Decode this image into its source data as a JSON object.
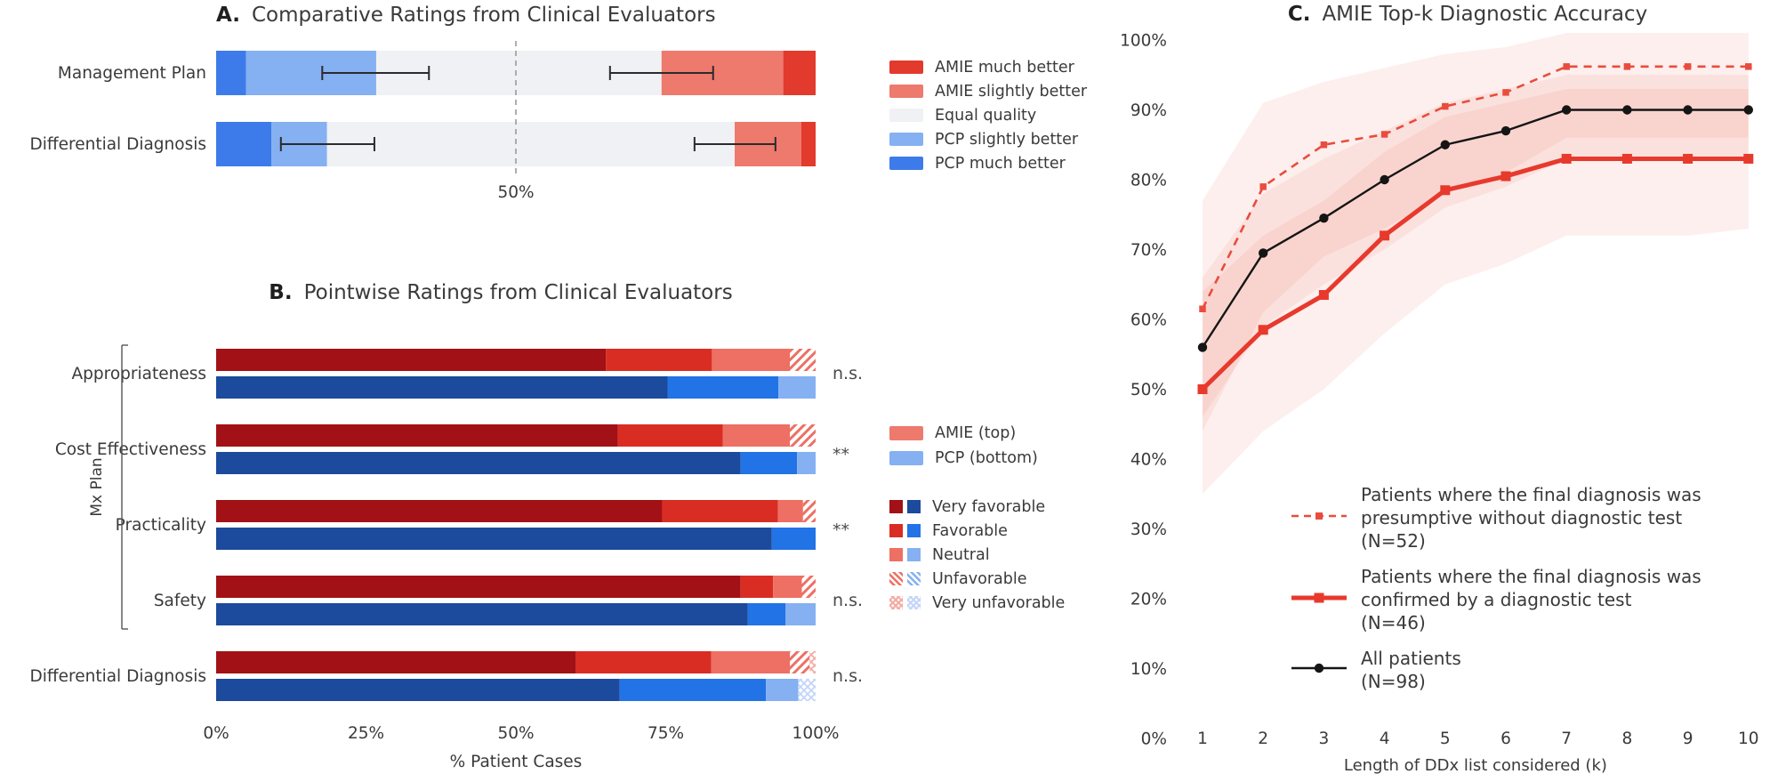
{
  "chart_data": [
    {
      "id": "panel_a",
      "type": "bar",
      "orientation": "horizontal",
      "stacked": true,
      "panel_label": "A.",
      "title": "Comparative Ratings from Clinical Evaluators",
      "reference_line": {
        "value": 50,
        "label": "50%"
      },
      "xlim": [
        0,
        100
      ],
      "categories": [
        "Management Plan",
        "Differential Diagnosis"
      ],
      "series": [
        {
          "name": "PCP much better",
          "color": "#3d7bea",
          "values": [
            5.0,
            9.2
          ]
        },
        {
          "name": "PCP slightly better",
          "color": "#85b0f1",
          "values": [
            21.7,
            9.3
          ]
        },
        {
          "name": "Equal quality",
          "color": "#f0f1f4",
          "values": [
            47.6,
            68.0
          ]
        },
        {
          "name": "AMIE slightly better",
          "color": "#ee796d",
          "values": [
            20.3,
            11.1
          ]
        },
        {
          "name": "AMIE much better",
          "color": "#e23a2c",
          "values": [
            5.4,
            2.4
          ]
        }
      ],
      "error_bars": {
        "left": [
          [
            17.7,
            35.5
          ],
          [
            10.8,
            26.4
          ]
        ],
        "right": [
          [
            65.7,
            82.9
          ],
          [
            79.8,
            93.3
          ]
        ]
      },
      "legend": [
        {
          "label": "AMIE much better",
          "color": "#e23a2c"
        },
        {
          "label": "AMIE slightly better",
          "color": "#ee796d"
        },
        {
          "label": "Equal quality",
          "color": "#f0f1f4"
        },
        {
          "label": "PCP slightly better",
          "color": "#85b0f1"
        },
        {
          "label": "PCP much better",
          "color": "#3d7bea"
        }
      ]
    },
    {
      "id": "panel_b",
      "type": "bar",
      "orientation": "horizontal",
      "stacked": true,
      "panel_label": "B.",
      "title": "Pointwise Ratings from Clinical Evaluators",
      "xlabel": "% Patient Cases",
      "x_ticks": [
        {
          "v": 0,
          "label": "0%"
        },
        {
          "v": 25,
          "label": "25%"
        },
        {
          "v": 50,
          "label": "50%"
        },
        {
          "v": 75,
          "label": "75%"
        },
        {
          "v": 100,
          "label": "100%"
        }
      ],
      "group_axis_label": "Mx Plan",
      "rating_levels": [
        "Very favorable",
        "Favorable",
        "Neutral",
        "Unfavorable",
        "Very unfavorable"
      ],
      "palette": {
        "amie": {
          "very_favorable": "#a21116",
          "favorable": "#d92d23",
          "neutral": "#ee6f63",
          "hatch": "#ee6f63",
          "cross": "#f2aca3"
        },
        "pcp": {
          "very_favorable": "#1c4a9c",
          "favorable": "#2173e6",
          "neutral": "#85b0f1",
          "hatch": "#85b0f1",
          "cross": "#c4d5f8"
        }
      },
      "pair_legend": [
        {
          "label": "AMIE (top)",
          "color": "#ee796d"
        },
        {
          "label": "PCP (bottom)",
          "color": "#85b0f1"
        }
      ],
      "rating_legend": [
        {
          "label": "Very favorable",
          "red": "#a21116",
          "blue": "#1c4a9c",
          "pattern": "solid"
        },
        {
          "label": "Favorable",
          "red": "#d92d23",
          "blue": "#2173e6",
          "pattern": "solid"
        },
        {
          "label": "Neutral",
          "red": "#ee6f63",
          "blue": "#85b0f1",
          "pattern": "solid"
        },
        {
          "label": "Unfavorable",
          "red": "#ee6f63",
          "blue": "#85b0f1",
          "pattern": "hatch"
        },
        {
          "label": "Very unfavorable",
          "red": "#f2aca3",
          "blue": "#c4d5f8",
          "pattern": "cross"
        }
      ],
      "rows": [
        {
          "category": "Appropriateness",
          "significance": "n.s.",
          "amie": [
            65.0,
            17.7,
            13.0,
            4.3,
            0
          ],
          "pcp": [
            75.3,
            18.5,
            6.2,
            0,
            0
          ]
        },
        {
          "category": "Cost Effectiveness",
          "significance": "**",
          "amie": [
            67.0,
            17.5,
            11.2,
            4.3,
            0
          ],
          "pcp": [
            87.5,
            9.4,
            3.1,
            0,
            0
          ]
        },
        {
          "category": "Practicality",
          "significance": "**",
          "amie": [
            74.4,
            19.3,
            4.2,
            2.1,
            0
          ],
          "pcp": [
            92.7,
            7.3,
            0,
            0,
            0
          ]
        },
        {
          "category": "Safety",
          "significance": "n.s.",
          "amie": [
            87.5,
            5.4,
            4.8,
            2.3,
            0
          ],
          "pcp": [
            88.7,
            6.3,
            5.0,
            0,
            0
          ]
        },
        {
          "category": "Differential Diagnosis",
          "significance": "n.s.",
          "amie": [
            60.0,
            22.6,
            13.1,
            3.3,
            1.0
          ],
          "pcp": [
            67.3,
            24.4,
            5.4,
            0,
            2.9
          ]
        }
      ],
      "bracket_rows": [
        0,
        3
      ]
    },
    {
      "id": "panel_c",
      "type": "line",
      "panel_label": "C.",
      "title": "AMIE Top-k Diagnostic Accuracy",
      "xlabel": "Length of DDx list considered (k)",
      "x": [
        1,
        2,
        3,
        4,
        5,
        6,
        7,
        8,
        9,
        10
      ],
      "x_tick_labels": [
        "1",
        "2",
        "3",
        "4",
        "5",
        "6",
        "7",
        "8",
        "9",
        "10"
      ],
      "y_tick_labels": [
        "0%",
        "10%",
        "20%",
        "30%",
        "40%",
        "50%",
        "60%",
        "70%",
        "80%",
        "90%",
        "100%"
      ],
      "ylim": [
        0,
        100
      ],
      "band_color": "#f08273",
      "band_opacity": 0.13,
      "series": [
        {
          "name": "Patients where the final diagnosis was presumptive without diagnostic test (N=52)",
          "style": "dashed",
          "marker": "square",
          "color": "#e94c3e",
          "width": 2.6,
          "values": [
            61.5,
            79,
            85,
            86.5,
            90.5,
            92.5,
            96.2,
            96.2,
            96.2,
            96.2
          ],
          "band_low": [
            44,
            61,
            69,
            73,
            78,
            81,
            86,
            86,
            86,
            86
          ],
          "band_high": [
            77,
            91,
            94,
            96,
            98,
            99,
            101,
            101,
            101,
            101
          ]
        },
        {
          "name": "All patients (N=98)",
          "style": "solid",
          "marker": "circle",
          "color": "#151515",
          "width": 2.4,
          "values": [
            56,
            69.5,
            74.5,
            80,
            85,
            87,
            90,
            90,
            90,
            90
          ],
          "band_low": [
            46,
            59,
            65,
            70,
            76,
            79,
            83,
            83,
            83,
            83
          ],
          "band_high": [
            66,
            78,
            83,
            87,
            91,
            93,
            95,
            95,
            95,
            95
          ]
        },
        {
          "name": "Patients where the final diagnosis was confirmed by a diagnostic test (N=46)",
          "style": "solid-thick",
          "marker": "square-large",
          "color": "#e8392d",
          "width": 5,
          "values": [
            50,
            58.5,
            63.5,
            72,
            78.5,
            80.5,
            83,
            83,
            83,
            83
          ],
          "band_low": [
            35,
            44,
            50,
            58,
            65,
            68,
            72,
            72,
            72,
            73
          ],
          "band_high": [
            64,
            72,
            77,
            84,
            89,
            91,
            93,
            93,
            93,
            93
          ]
        }
      ],
      "legend": [
        {
          "series": 0,
          "label": "Patients where the final diagnosis was\npresumptive without diagnostic test\n(N=52)"
        },
        {
          "series": 2,
          "label": "Patients where the final diagnosis was\nconfirmed by a diagnostic test\n(N=46)"
        },
        {
          "series": 1,
          "label": "All patients\n(N=98)"
        }
      ]
    }
  ]
}
